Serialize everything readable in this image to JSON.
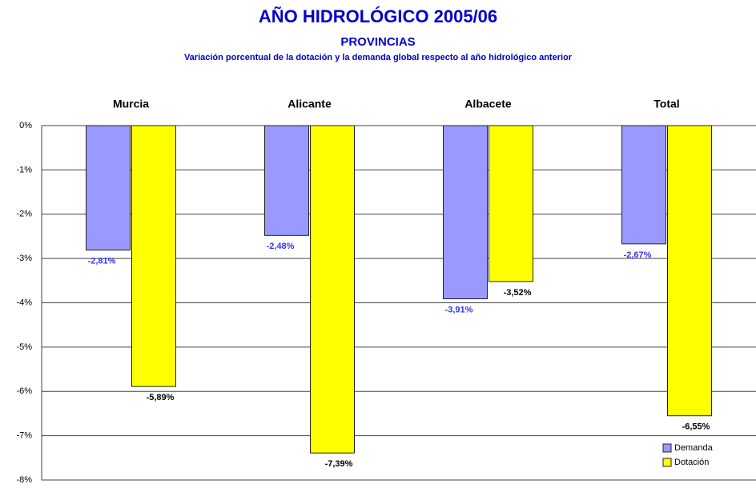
{
  "chart_data": {
    "type": "bar",
    "title": "AÑO HIDROLÓGICO 2005/06",
    "subtitle": "PROVINCIAS",
    "caption": "Variación porcentual de la dotación y la demanda global respecto al año hidrológico anterior",
    "categories": [
      "Murcia",
      "Alicante",
      "Albacete",
      "Total"
    ],
    "series": [
      {
        "name": "Demanda",
        "color": "#9999ff",
        "label_color": "#3333ff",
        "values": [
          -2.81,
          -2.48,
          -3.91,
          -2.67
        ],
        "value_labels": [
          "-2,81%",
          "-2,48%",
          "-3,91%",
          "-2,67%"
        ]
      },
      {
        "name": "Dotación",
        "color": "#ffff00",
        "label_color": "#000000",
        "values": [
          -5.89,
          -7.39,
          -3.52,
          -6.55
        ],
        "value_labels": [
          "-5,89%",
          "-7,39%",
          "-3,52%",
          "-6,55%"
        ]
      }
    ],
    "ylim": [
      -8,
      0
    ],
    "yticks": [
      {
        "value": 0,
        "label": "0%"
      },
      {
        "value": -1,
        "label": "-1%"
      },
      {
        "value": -2,
        "label": "-2%"
      },
      {
        "value": -3,
        "label": "-3%"
      },
      {
        "value": -4,
        "label": "-4%"
      },
      {
        "value": -5,
        "label": "-5%"
      },
      {
        "value": -6,
        "label": "-6%"
      },
      {
        "value": -7,
        "label": "-7%"
      },
      {
        "value": -8,
        "label": "-8%"
      }
    ],
    "grid": true,
    "legend": "bottom-right"
  }
}
